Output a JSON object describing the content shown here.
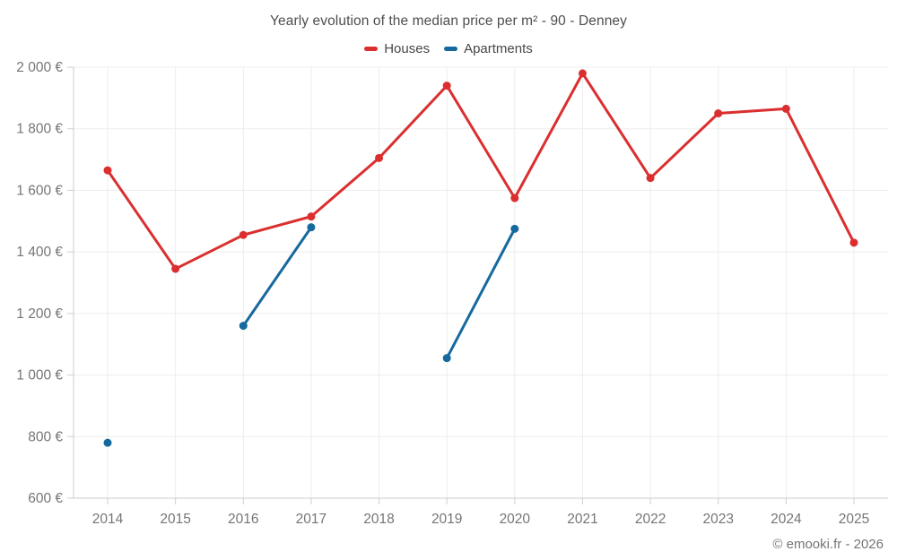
{
  "chart_data": {
    "type": "line",
    "title": "Yearly evolution of the median price per m² - 90 - Denney",
    "xlabel": "",
    "ylabel": "",
    "categories": [
      "2014",
      "2015",
      "2016",
      "2017",
      "2018",
      "2019",
      "2020",
      "2021",
      "2022",
      "2023",
      "2024",
      "2025"
    ],
    "series": [
      {
        "name": "Houses",
        "color": "#db2f2f",
        "values": [
          1665,
          1345,
          1455,
          1515,
          1705,
          1940,
          1575,
          1980,
          1640,
          1850,
          1865,
          1430
        ]
      },
      {
        "name": "Apartments",
        "color": "#16699e",
        "values": [
          780,
          null,
          1160,
          1480,
          null,
          1055,
          1475,
          null,
          null,
          null,
          null,
          null
        ]
      }
    ],
    "ylim": [
      600,
      2000
    ],
    "yticks": [
      {
        "value": 600,
        "label": "600 €"
      },
      {
        "value": 800,
        "label": "800 €"
      },
      {
        "value": 1000,
        "label": "1 000 €"
      },
      {
        "value": 1200,
        "label": "1 200 €"
      },
      {
        "value": 1400,
        "label": "1 400 €"
      },
      {
        "value": 1600,
        "label": "1 600 €"
      },
      {
        "value": 1800,
        "label": "1 800 €"
      },
      {
        "value": 2000,
        "label": "2 000 €"
      }
    ],
    "grid": true,
    "legend_position": "top",
    "currency_suffix": "€"
  },
  "footer": {
    "copyright": "© emooki.fr - 2026"
  }
}
